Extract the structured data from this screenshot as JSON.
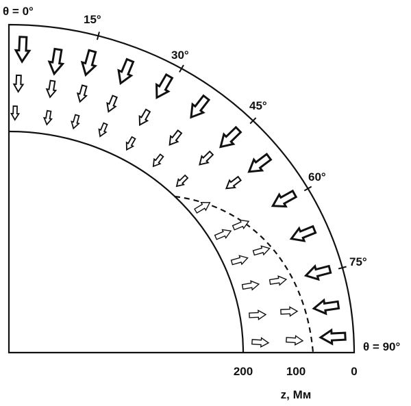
{
  "angle_labels": [
    "θ = 0°",
    "15°",
    "30°",
    "45°",
    "60°",
    "75°",
    "θ = 90°"
  ],
  "axis": {
    "tick_labels": [
      "200",
      "100",
      "0"
    ],
    "label": "z, Мм"
  }
}
